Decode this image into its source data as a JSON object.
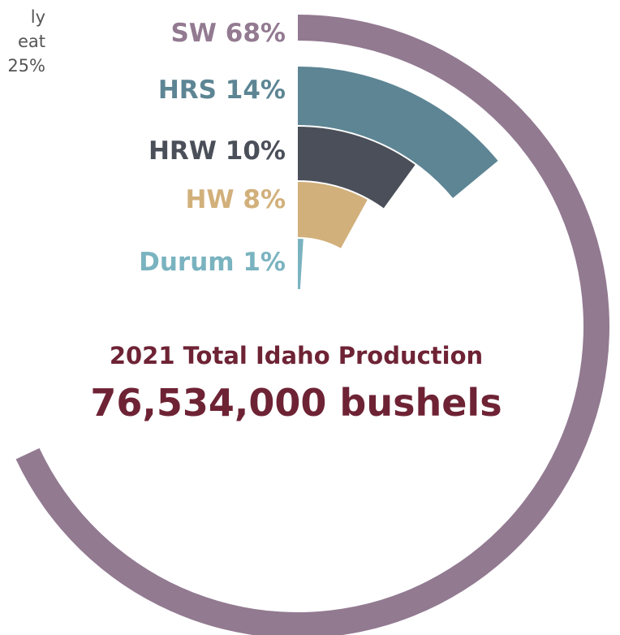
{
  "corner_note": {
    "lines": [
      "ly",
      "eat",
      "25%"
    ]
  },
  "chart_data": {
    "type": "pie",
    "variant": "concentric radial arcs",
    "categories": [
      "SW",
      "HRS",
      "HRW",
      "HW",
      "Durum"
    ],
    "values": [
      68,
      14,
      10,
      8,
      1
    ],
    "unit": "%",
    "labels": [
      "SW 68%",
      "HRS 14%",
      "HRW 10%",
      "HW 8%",
      "Durum 1%"
    ],
    "colors": [
      "#927a91",
      "#5d8594",
      "#4a4f59",
      "#d2b07b",
      "#7ab3c0"
    ],
    "title": "2021 Total Idaho Production",
    "total_label": "76,534,000 bushels",
    "title_color": "#6e2335"
  }
}
